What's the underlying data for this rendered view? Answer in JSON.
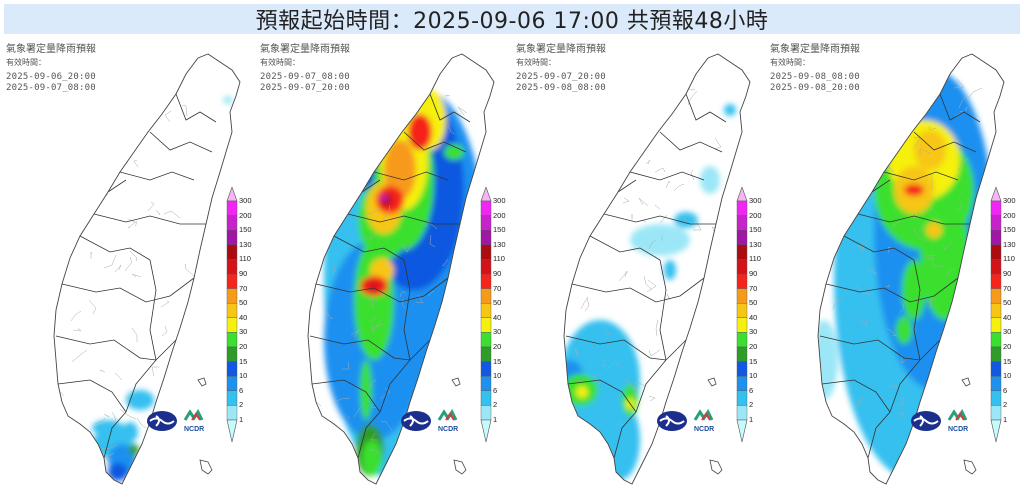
{
  "header": {
    "title": "預報起始時間：2025-09-06 17:00  共預報48小時",
    "background": "#dbeafb"
  },
  "panels": [
    {
      "org_title": "氣象署定量降雨預報",
      "valid_label": "有效時間：",
      "start": "2025-09-06_20:00",
      "end": "2025-09-07_08:00",
      "summary": "Mostly dry; light rain (1-10 mm) over southern tip and southeast coast"
    },
    {
      "org_title": "氣象署定量降雨預報",
      "valid_label": "有效時間：",
      "start": "2025-09-07_08:00",
      "end": "2025-09-07_20:00",
      "summary": "Heavy rain along central/northern mountains up to 130-150 mm; island-wide rain"
    },
    {
      "org_title": "氣象署定量降雨預報",
      "valid_label": "有效時間：",
      "start": "2025-09-07_20:00",
      "end": "2025-09-08_08:00",
      "summary": "Rain mainly in south (up to 30-40 mm); light showers elsewhere"
    },
    {
      "org_title": "氣象署定量降雨預報",
      "valid_label": "有效時間：",
      "start": "2025-09-08_08:00",
      "end": "2025-09-08_20:00",
      "summary": "Rain over central and northern mountains up to 50-90 mm; northwest plains dry"
    }
  ],
  "legend": {
    "unit": "mm",
    "levels": [
      "1",
      "2",
      "6",
      "10",
      "15",
      "20",
      "30",
      "40",
      "50",
      "70",
      "90",
      "110",
      "130",
      "150",
      "200",
      "300"
    ],
    "colors": [
      "#c6fbfd",
      "#9be7f7",
      "#35c0ef",
      "#1e90f0",
      "#1159e0",
      "#2f9b28",
      "#3be02e",
      "#f6f00e",
      "#f7c614",
      "#f79a1c",
      "#f5241c",
      "#d2141a",
      "#aa0c12",
      "#a016a6",
      "#c822cc",
      "#f027f2",
      "#f7b4f7"
    ]
  },
  "logos": {
    "left": "CWA",
    "right": "NCDR"
  }
}
